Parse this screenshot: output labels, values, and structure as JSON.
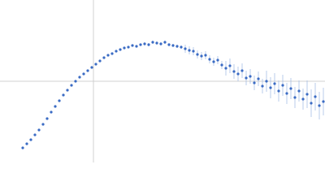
{
  "chart_data": {
    "type": "scatter",
    "color": "#3a6bc4",
    "error_color": "#a9bfe6",
    "axis_color": "#d0d0d0",
    "xlim": [
      -1.15,
      2.85
    ],
    "ylim": [
      -1,
      1
    ],
    "x": [
      -0.87,
      -0.82,
      -0.77,
      -0.72,
      -0.67,
      -0.62,
      -0.57,
      -0.52,
      -0.47,
      -0.42,
      -0.37,
      -0.32,
      -0.27,
      -0.22,
      -0.17,
      -0.12,
      -0.07,
      -0.02,
      0.03,
      0.08,
      0.13,
      0.18,
      0.23,
      0.28,
      0.33,
      0.38,
      0.43,
      0.48,
      0.53,
      0.58,
      0.63,
      0.68,
      0.73,
      0.78,
      0.83,
      0.88,
      0.93,
      0.98,
      1.03,
      1.08,
      1.13,
      1.18,
      1.23,
      1.28,
      1.33,
      1.38,
      1.43,
      1.48,
      1.53,
      1.58,
      1.63,
      1.68,
      1.73,
      1.78,
      1.83,
      1.88,
      1.93,
      1.98,
      2.03,
      2.08,
      2.13,
      2.18,
      2.23,
      2.28,
      2.33,
      2.38,
      2.43,
      2.48,
      2.53,
      2.58,
      2.63,
      2.68,
      2.73,
      2.78,
      2.83
    ],
    "values": [
      -0.82,
      -0.77,
      -0.72,
      -0.66,
      -0.6,
      -0.53,
      -0.46,
      -0.38,
      -0.31,
      -0.24,
      -0.17,
      -0.11,
      -0.05,
      0.0,
      0.05,
      0.09,
      0.13,
      0.17,
      0.21,
      0.25,
      0.29,
      0.32,
      0.34,
      0.37,
      0.39,
      0.41,
      0.42,
      0.44,
      0.43,
      0.45,
      0.46,
      0.45,
      0.48,
      0.47,
      0.46,
      0.48,
      0.45,
      0.44,
      0.43,
      0.42,
      0.4,
      0.38,
      0.37,
      0.33,
      0.31,
      0.32,
      0.27,
      0.24,
      0.26,
      0.2,
      0.16,
      0.19,
      0.12,
      0.09,
      0.13,
      0.04,
      0.06,
      -0.02,
      0.03,
      -0.06,
      0.0,
      -0.08,
      -0.03,
      -0.12,
      -0.05,
      -0.15,
      -0.09,
      -0.2,
      -0.12,
      -0.22,
      -0.16,
      -0.27,
      -0.19,
      -0.3,
      -0.25
    ],
    "errors": [
      0.01,
      0.01,
      0.01,
      0.01,
      0.01,
      0.01,
      0.01,
      0.01,
      0.01,
      0.01,
      0.01,
      0.01,
      0.01,
      0.01,
      0.01,
      0.01,
      0.01,
      0.01,
      0.01,
      0.01,
      0.01,
      0.01,
      0.01,
      0.01,
      0.01,
      0.01,
      0.01,
      0.01,
      0.01,
      0.01,
      0.02,
      0.02,
      0.02,
      0.02,
      0.02,
      0.02,
      0.02,
      0.02,
      0.02,
      0.02,
      0.05,
      0.05,
      0.05,
      0.05,
      0.05,
      0.05,
      0.05,
      0.05,
      0.05,
      0.05,
      0.09,
      0.09,
      0.09,
      0.09,
      0.09,
      0.09,
      0.09,
      0.09,
      0.09,
      0.09,
      0.13,
      0.13,
      0.13,
      0.13,
      0.13,
      0.13,
      0.13,
      0.13,
      0.13,
      0.13,
      0.17,
      0.17,
      0.17,
      0.17,
      0.17
    ]
  }
}
